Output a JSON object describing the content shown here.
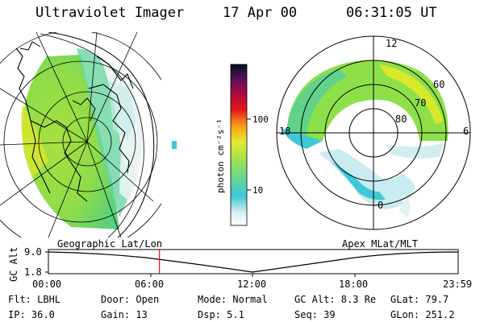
{
  "header": {
    "title": "Ultraviolet Imager",
    "date": "17 Apr 00",
    "time": "06:31:05 UT"
  },
  "colorbar": {
    "unit_label": "photon cm⁻²s⁻¹",
    "tick_100": "100",
    "tick_10": "10"
  },
  "polar": {
    "mlt_12": "12",
    "mlt_18": "18",
    "mlt_6": "6",
    "mlt_0": "0",
    "lat_60": "60",
    "lat_70": "70",
    "lat_80": "80"
  },
  "panel_labels": {
    "left": "Geographic Lat/Lon",
    "right": "Apex MLat/MLT"
  },
  "altitude_plot": {
    "ylabel": "GC Alt",
    "ymax": "9.0",
    "ymin": "1.8",
    "x_ticks": [
      "00:00",
      "06:00",
      "12:00",
      "18:00",
      "23:59"
    ],
    "marker_time_fraction": 0.271
  },
  "info": {
    "flt": "Flt: LBHL",
    "door": "Door: Open",
    "mode": "Mode: Normal",
    "gc_alt": "GC Alt: 8.3 Re",
    "glat": "GLat:  79.7",
    "ip": "IP: 36.0",
    "gain": "Gain: 13",
    "dsp": "Dsp:    5.1",
    "seq": "Seq: 39",
    "glon": "GLon: 251.2"
  },
  "colors": {
    "marker": "#ff0000",
    "emission_green": "#8ee04a",
    "emission_yellow": "#d8e82a",
    "emission_cyan": "#3ec8d8"
  }
}
